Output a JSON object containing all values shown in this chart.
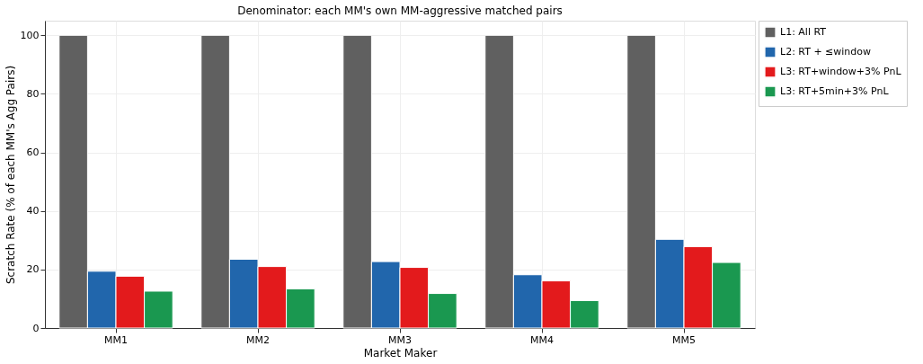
{
  "chart_data": {
    "type": "bar",
    "title": "Denominator: each MM's own MM-aggressive matched pairs",
    "xlabel": "Market Maker",
    "ylabel": "Scratch Rate (% of each MM's Agg Pairs)",
    "categories": [
      "MM1",
      "MM2",
      "MM3",
      "MM4",
      "MM5"
    ],
    "series": [
      {
        "name": "L1: All RT",
        "color": "#606060",
        "values": [
          100,
          100,
          100,
          100,
          100
        ]
      },
      {
        "name": "L2: RT + ≤window",
        "color": "#2166ac",
        "values": [
          19.4,
          23.5,
          22.7,
          18.2,
          30.3
        ]
      },
      {
        "name": "L3: RT+window+3% PnL",
        "color": "#e31a1c",
        "values": [
          17.7,
          21.0,
          20.7,
          16.1,
          27.8
        ]
      },
      {
        "name": "L3: RT+5min+3% PnL",
        "color": "#1a9850",
        "values": [
          12.6,
          13.4,
          11.8,
          9.4,
          22.4
        ]
      }
    ],
    "ylim": [
      0,
      105
    ],
    "yticks": [
      0,
      20,
      40,
      60,
      80,
      100
    ],
    "grid": true,
    "legend": "right"
  }
}
